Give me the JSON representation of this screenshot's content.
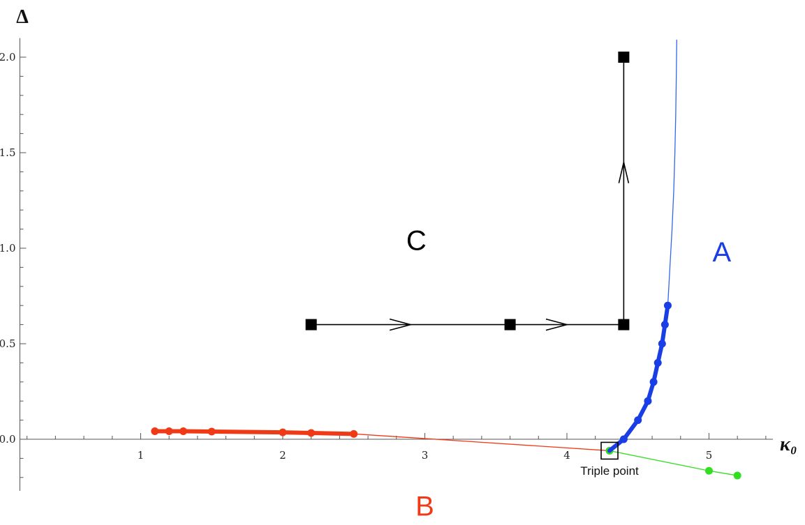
{
  "chart_data": {
    "type": "line",
    "title": "",
    "xlabel": "κ₀",
    "ylabel": "Δ",
    "xlim": [
      0.15,
      5.45
    ],
    "ylim": [
      -0.27,
      2.1
    ],
    "xticks": [
      1,
      2,
      3,
      4,
      5
    ],
    "xtick_labels": [
      "1",
      "2",
      "3",
      "4",
      "5"
    ],
    "yticks": [
      0,
      0.5,
      1.0,
      1.5,
      2.0
    ],
    "ytick_labels": [
      "0.0",
      "0.5",
      "1.0",
      "1.5",
      "2.0"
    ],
    "grid": false,
    "series": [
      {
        "key": "B_thick",
        "color": "#f03a17",
        "style": "thick",
        "x": [
          1.1,
          1.2,
          1.3,
          1.5,
          2.0,
          2.2,
          2.5
        ],
        "y": [
          0.042,
          0.042,
          0.042,
          0.04,
          0.036,
          0.033,
          0.028
        ],
        "markers": true
      },
      {
        "key": "B_extrapolated",
        "color": "#f03a17",
        "style": "thin",
        "x": [
          2.5,
          4.3
        ],
        "y": [
          0.028,
          -0.06
        ],
        "markers": false
      },
      {
        "key": "green",
        "color": "#33dd22",
        "style": "thin",
        "x": [
          4.3,
          5.0,
          5.2
        ],
        "y": [
          -0.06,
          -0.165,
          -0.19
        ],
        "markers": true,
        "marker_x": [
          4.3,
          5.0,
          5.2
        ],
        "marker_y": [
          -0.06,
          -0.165,
          -0.19
        ]
      },
      {
        "key": "A_thick",
        "color": "#1a3ee6",
        "style": "thick",
        "x": [
          4.3,
          4.4,
          4.5,
          4.57,
          4.61,
          4.64,
          4.67,
          4.69,
          4.71
        ],
        "y": [
          -0.06,
          0.0,
          0.1,
          0.2,
          0.3,
          0.4,
          0.5,
          0.6,
          0.7
        ],
        "markers": true,
        "marker_x": [
          4.4,
          4.5,
          4.57,
          4.61,
          4.64,
          4.67,
          4.69,
          4.71
        ],
        "marker_y": [
          0.0,
          0.1,
          0.2,
          0.3,
          0.4,
          0.5,
          0.6,
          0.7
        ]
      },
      {
        "key": "A_extrapolated",
        "color": "#3366ee",
        "style": "thin",
        "x": [
          4.71,
          4.725,
          4.74,
          4.752,
          4.76,
          4.766,
          4.77,
          4.773
        ],
        "y": [
          0.7,
          0.9,
          1.1,
          1.3,
          1.5,
          1.7,
          1.9,
          2.09
        ],
        "markers": false
      }
    ],
    "path": {
      "color": "#000000",
      "points_x": [
        2.2,
        3.6,
        4.4,
        4.4
      ],
      "points_y": [
        0.6,
        0.6,
        0.6,
        2.0
      ],
      "arrows": [
        {
          "x": 2.9,
          "y": 0.6,
          "direction": "right"
        },
        {
          "x": 4.0,
          "y": 0.6,
          "direction": "right"
        },
        {
          "x": 4.4,
          "y": 1.45,
          "direction": "up"
        }
      ]
    },
    "region_labels": [
      {
        "text": "C",
        "x": 2.94,
        "y": 0.99,
        "color": "#000000"
      },
      {
        "text": "A",
        "x": 5.09,
        "y": 0.93,
        "color": "#1a3ee6"
      },
      {
        "text": "B",
        "x": 3.0,
        "y": -0.4,
        "color": "#f03a17"
      }
    ],
    "annotation": {
      "text": "Triple point",
      "box_x": 4.3,
      "box_y": -0.06,
      "text_x": 4.3,
      "text_y": -0.165
    }
  }
}
